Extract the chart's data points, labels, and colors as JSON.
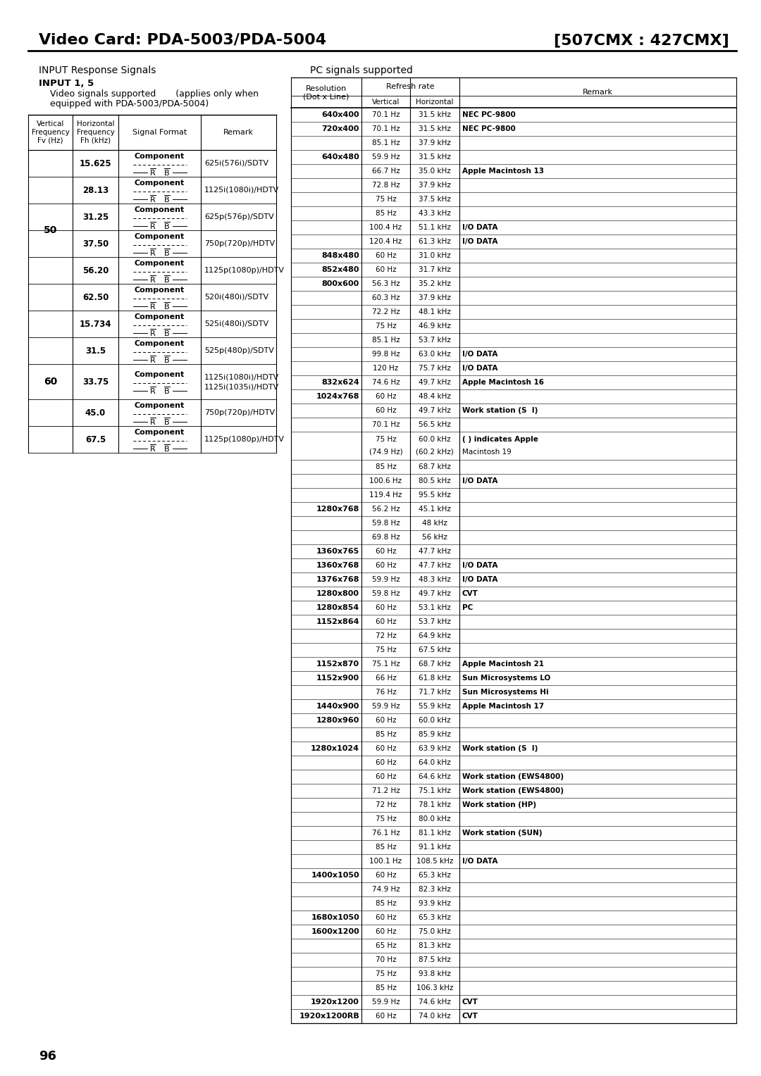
{
  "title_left": "Video Card: PDA-5003/PDA-5004",
  "title_right": "[507CMX : 427CMX]",
  "section_left": "INPUT Response Signals",
  "section_right": "PC signals supported",
  "input_note1": "INPUT 1, 5",
  "input_note2": "    Video signals supported       (applies only when",
  "input_note3": "    equipped with PDA-5003/PDA-5004)",
  "left_table_data": [
    [
      "50",
      "15.625",
      "625i(576i)/SDTV"
    ],
    [
      "50",
      "28.13",
      "1125i(1080i)/HDTV"
    ],
    [
      "50",
      "31.25",
      "625p(576p)/SDTV"
    ],
    [
      "50",
      "37.50",
      "750p(720p)/HDTV"
    ],
    [
      "50",
      "56.20",
      "1125p(1080p)/HDTV"
    ],
    [
      "50",
      "62.50",
      "520i(480i)/SDTV"
    ],
    [
      "60",
      "15.734",
      "525i(480i)/SDTV"
    ],
    [
      "60",
      "31.5",
      "525p(480p)/SDTV"
    ],
    [
      "60",
      "33.75",
      "1125i(1080i)/HDTV\n1125i(1035i)/HDTV"
    ],
    [
      "60",
      "45.0",
      "750p(720p)/HDTV"
    ],
    [
      "60",
      "67.5",
      "1125p(1080p)/HDTV"
    ]
  ],
  "right_table_data": [
    [
      "640x400",
      "70.1 Hz",
      "31.5 kHz",
      "NEC PC-9800"
    ],
    [
      "720x400",
      "70.1 Hz",
      "31.5 kHz",
      "NEC PC-9800"
    ],
    [
      "",
      "85.1 Hz",
      "37.9 kHz",
      ""
    ],
    [
      "640x480",
      "59.9 Hz",
      "31.5 kHz",
      ""
    ],
    [
      "",
      "66.7 Hz",
      "35.0 kHz",
      "Apple Macintosh 13"
    ],
    [
      "",
      "72.8 Hz",
      "37.9 kHz",
      ""
    ],
    [
      "",
      "75 Hz",
      "37.5 kHz",
      ""
    ],
    [
      "",
      "85 Hz",
      "43.3 kHz",
      ""
    ],
    [
      "",
      "100.4 Hz",
      "51.1 kHz",
      "I/O DATA"
    ],
    [
      "",
      "120.4 Hz",
      "61.3 kHz",
      "I/O DATA"
    ],
    [
      "848x480",
      "60 Hz",
      "31.0 kHz",
      ""
    ],
    [
      "852x480",
      "60 Hz",
      "31.7 kHz",
      ""
    ],
    [
      "800x600",
      "56.3 Hz",
      "35.2 kHz",
      ""
    ],
    [
      "",
      "60.3 Hz",
      "37.9 kHz",
      ""
    ],
    [
      "",
      "72.2 Hz",
      "48.1 kHz",
      ""
    ],
    [
      "",
      "75 Hz",
      "46.9 kHz",
      ""
    ],
    [
      "",
      "85.1 Hz",
      "53.7 kHz",
      ""
    ],
    [
      "",
      "99.8 Hz",
      "63.0 kHz",
      "I/O DATA"
    ],
    [
      "",
      "120 Hz",
      "75.7 kHz",
      "I/O DATA"
    ],
    [
      "832x624",
      "74.6 Hz",
      "49.7 kHz",
      "Apple Macintosh 16"
    ],
    [
      "1024x768",
      "60 Hz",
      "48.4 kHz",
      ""
    ],
    [
      "",
      "60 Hz",
      "49.7 kHz",
      "Work station (S  I)"
    ],
    [
      "",
      "70.1 Hz",
      "56.5 kHz",
      ""
    ],
    [
      "",
      "75 Hz|(74.9 Hz)",
      "60.0 kHz|(60.2 kHz)",
      "( ) indicates Apple|Macintosh 19"
    ],
    [
      "",
      "85 Hz",
      "68.7 kHz",
      ""
    ],
    [
      "",
      "100.6 Hz",
      "80.5 kHz",
      "I/O DATA"
    ],
    [
      "",
      "119.4 Hz",
      "95.5 kHz",
      ""
    ],
    [
      "1280x768",
      "56.2 Hz",
      "45.1 kHz",
      ""
    ],
    [
      "",
      "59.8 Hz",
      "48 kHz",
      ""
    ],
    [
      "",
      "69.8 Hz",
      "56 kHz",
      ""
    ],
    [
      "1360x765",
      "60 Hz",
      "47.7 kHz",
      ""
    ],
    [
      "1360x768",
      "60 Hz",
      "47.7 kHz",
      "I/O DATA"
    ],
    [
      "1376x768",
      "59.9 Hz",
      "48.3 kHz",
      "I/O DATA"
    ],
    [
      "1280x800",
      "59.8 Hz",
      "49.7 kHz",
      "CVT"
    ],
    [
      "1280x854",
      "60 Hz",
      "53.1 kHz",
      "PC"
    ],
    [
      "1152x864",
      "60 Hz",
      "53.7 kHz",
      ""
    ],
    [
      "",
      "72 Hz",
      "64.9 kHz",
      ""
    ],
    [
      "",
      "75 Hz",
      "67.5 kHz",
      ""
    ],
    [
      "1152x870",
      "75.1 Hz",
      "68.7 kHz",
      "Apple Macintosh 21"
    ],
    [
      "1152x900",
      "66 Hz",
      "61.8 kHz",
      "Sun Microsystems LO"
    ],
    [
      "",
      "76 Hz",
      "71.7 kHz",
      "Sun Microsystems Hi"
    ],
    [
      "1440x900",
      "59.9 Hz",
      "55.9 kHz",
      "Apple Macintosh 17"
    ],
    [
      "1280x960",
      "60 Hz",
      "60.0 kHz",
      ""
    ],
    [
      "",
      "85 Hz",
      "85.9 kHz",
      ""
    ],
    [
      "1280x1024",
      "60 Hz",
      "63.9 kHz",
      "Work station (S  I)"
    ],
    [
      "",
      "60 Hz",
      "64.0 kHz",
      ""
    ],
    [
      "",
      "60 Hz",
      "64.6 kHz",
      "Work station (EWS4800)"
    ],
    [
      "",
      "71.2 Hz",
      "75.1 kHz",
      "Work station (EWS4800)"
    ],
    [
      "",
      "72 Hz",
      "78.1 kHz",
      "Work station (HP)"
    ],
    [
      "",
      "75 Hz",
      "80.0 kHz",
      ""
    ],
    [
      "",
      "76.1 Hz",
      "81.1 kHz",
      "Work station (SUN)"
    ],
    [
      "",
      "85 Hz",
      "91.1 kHz",
      ""
    ],
    [
      "",
      "100.1 Hz",
      "108.5 kHz",
      "I/O DATA"
    ],
    [
      "1400x1050",
      "60 Hz",
      "65.3 kHz",
      ""
    ],
    [
      "",
      "74.9 Hz",
      "82.3 kHz",
      ""
    ],
    [
      "",
      "85 Hz",
      "93.9 kHz",
      ""
    ],
    [
      "1680x1050",
      "60 Hz",
      "65.3 kHz",
      ""
    ],
    [
      "1600x1200",
      "60 Hz",
      "75.0 kHz",
      ""
    ],
    [
      "",
      "65 Hz",
      "81.3 kHz",
      ""
    ],
    [
      "",
      "70 Hz",
      "87.5 kHz",
      ""
    ],
    [
      "",
      "75 Hz",
      "93.8 kHz",
      ""
    ],
    [
      "",
      "85 Hz",
      "106.3 kHz",
      ""
    ],
    [
      "1920x1200",
      "59.9 Hz",
      "74.6 kHz",
      "CVT"
    ],
    [
      "1920x1200RB",
      "60 Hz",
      "74.0 kHz",
      "CVT"
    ]
  ],
  "page_number": "96"
}
